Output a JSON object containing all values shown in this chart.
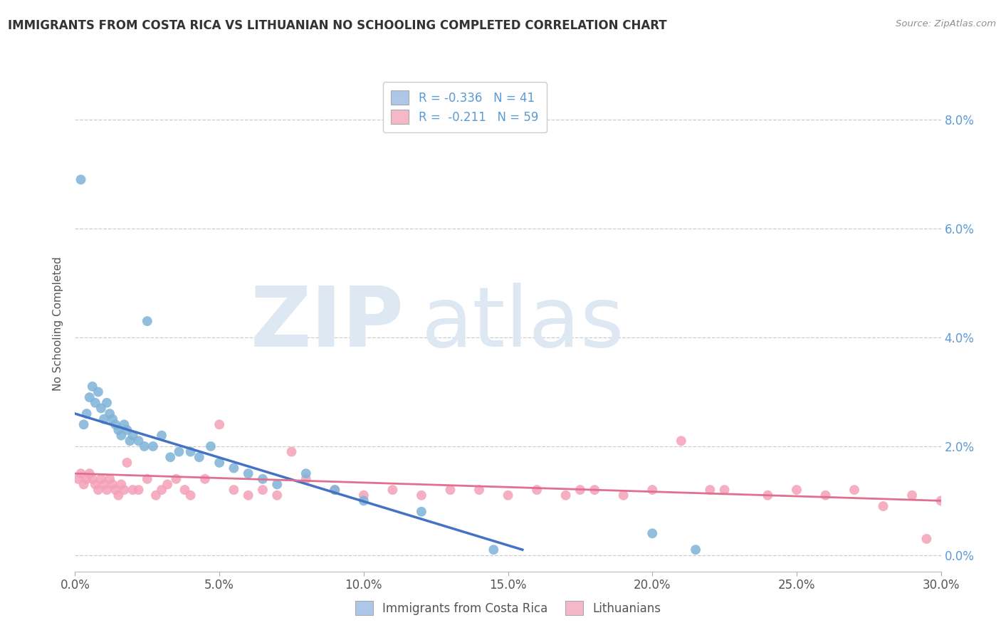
{
  "title": "IMMIGRANTS FROM COSTA RICA VS LITHUANIAN NO SCHOOLING COMPLETED CORRELATION CHART",
  "source": "Source: ZipAtlas.com",
  "ylabel_label": "No Schooling Completed",
  "xlim": [
    0.0,
    0.3
  ],
  "ylim": [
    -0.003,
    0.088
  ],
  "x_ticks": [
    0.0,
    0.05,
    0.1,
    0.15,
    0.2,
    0.25,
    0.3
  ],
  "x_tick_labels": [
    "0.0%",
    "5.0%",
    "10.0%",
    "15.0%",
    "20.0%",
    "25.0%",
    "30.0%"
  ],
  "y_ticks": [
    0.0,
    0.02,
    0.04,
    0.06,
    0.08
  ],
  "y_tick_labels": [
    "0.0%",
    "2.0%",
    "4.0%",
    "6.0%",
    "8.0%"
  ],
  "legend_entries": [
    {
      "label": "R = -0.336   N = 41",
      "color": "#aec6e8"
    },
    {
      "label": "R =  -0.211   N = 59",
      "color": "#f4b8c8"
    }
  ],
  "legend_bottom": [
    {
      "label": "Immigrants from Costa Rica",
      "color": "#aec6e8"
    },
    {
      "label": "Lithuanians",
      "color": "#f4b8c8"
    }
  ],
  "cr_scatter_x": [
    0.002,
    0.003,
    0.004,
    0.005,
    0.006,
    0.007,
    0.008,
    0.009,
    0.01,
    0.011,
    0.012,
    0.013,
    0.014,
    0.015,
    0.016,
    0.017,
    0.018,
    0.019,
    0.02,
    0.022,
    0.024,
    0.025,
    0.027,
    0.03,
    0.033,
    0.036,
    0.04,
    0.043,
    0.047,
    0.05,
    0.055,
    0.06,
    0.065,
    0.07,
    0.08,
    0.09,
    0.1,
    0.12,
    0.145,
    0.2,
    0.215
  ],
  "cr_scatter_y": [
    0.069,
    0.024,
    0.026,
    0.029,
    0.031,
    0.028,
    0.03,
    0.027,
    0.025,
    0.028,
    0.026,
    0.025,
    0.024,
    0.023,
    0.022,
    0.024,
    0.023,
    0.021,
    0.022,
    0.021,
    0.02,
    0.043,
    0.02,
    0.022,
    0.018,
    0.019,
    0.019,
    0.018,
    0.02,
    0.017,
    0.016,
    0.015,
    0.014,
    0.013,
    0.015,
    0.012,
    0.01,
    0.008,
    0.001,
    0.004,
    0.001
  ],
  "lt_scatter_x": [
    0.001,
    0.002,
    0.003,
    0.004,
    0.005,
    0.006,
    0.007,
    0.008,
    0.009,
    0.01,
    0.011,
    0.012,
    0.013,
    0.014,
    0.015,
    0.016,
    0.017,
    0.018,
    0.02,
    0.022,
    0.025,
    0.028,
    0.03,
    0.032,
    0.035,
    0.038,
    0.04,
    0.045,
    0.05,
    0.055,
    0.06,
    0.065,
    0.07,
    0.075,
    0.08,
    0.09,
    0.1,
    0.11,
    0.12,
    0.14,
    0.15,
    0.16,
    0.17,
    0.18,
    0.19,
    0.2,
    0.21,
    0.22,
    0.24,
    0.25,
    0.26,
    0.27,
    0.28,
    0.29,
    0.295,
    0.3,
    0.225,
    0.175,
    0.13
  ],
  "lt_scatter_y": [
    0.014,
    0.015,
    0.013,
    0.014,
    0.015,
    0.014,
    0.013,
    0.012,
    0.014,
    0.013,
    0.012,
    0.014,
    0.013,
    0.012,
    0.011,
    0.013,
    0.012,
    0.017,
    0.012,
    0.012,
    0.014,
    0.011,
    0.012,
    0.013,
    0.014,
    0.012,
    0.011,
    0.014,
    0.024,
    0.012,
    0.011,
    0.012,
    0.011,
    0.019,
    0.014,
    0.012,
    0.011,
    0.012,
    0.011,
    0.012,
    0.011,
    0.012,
    0.011,
    0.012,
    0.011,
    0.012,
    0.021,
    0.012,
    0.011,
    0.012,
    0.011,
    0.012,
    0.009,
    0.011,
    0.003,
    0.01,
    0.012,
    0.012,
    0.012
  ],
  "cr_line_x": [
    0.0,
    0.155
  ],
  "cr_line_y": [
    0.026,
    0.001
  ],
  "lt_line_x": [
    0.0,
    0.3
  ],
  "lt_line_y": [
    0.015,
    0.01
  ],
  "scatter_cr_color": "#7fb3d8",
  "scatter_lt_color": "#f4a0b8",
  "line_cr_color": "#4472c4",
  "line_lt_color": "#e07090",
  "grid_color": "#cccccc",
  "title_color": "#333333",
  "axis_label_color": "#555555",
  "right_axis_color": "#5b9bd5",
  "bg_color": "#ffffff"
}
